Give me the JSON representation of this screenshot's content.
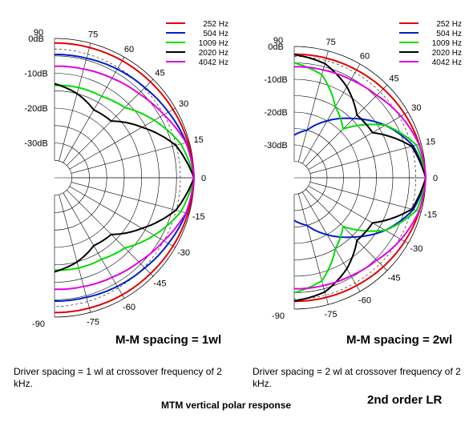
{
  "chart_data": [
    {
      "type": "polar",
      "subtitle": "M-M spacing = 1wl",
      "caption": "Driver spacing = 1 wl at crossover frequency of 2 kHz.",
      "angle_unit": "deg",
      "angle_ticks": [
        "90",
        "75",
        "60",
        "45",
        "30",
        "15",
        "0",
        "-15",
        "-30",
        "-45",
        "-60",
        "-75",
        "-90"
      ],
      "radial_ticks": [
        "0dB",
        "-10dB",
        "-20dB",
        "-30dB"
      ],
      "r_range": [
        -40,
        0
      ],
      "legend": [
        "252 Hz",
        "504 Hz",
        "1009 Hz",
        "2020 Hz",
        "4042 Hz"
      ],
      "series": [
        {
          "name": "252 Hz",
          "color": "#e00000",
          "angles": [
            0,
            15,
            30,
            45,
            60,
            75,
            90
          ],
          "values": [
            0,
            -0.4,
            -0.8,
            -1.1,
            -1.2,
            -1.3,
            -1.3
          ]
        },
        {
          "name": "504 Hz",
          "color": "#0020c8",
          "angles": [
            0,
            15,
            30,
            45,
            60,
            75,
            90
          ],
          "values": [
            0,
            -0.9,
            -2.3,
            -3.4,
            -4,
            -4.5,
            -4.6
          ]
        },
        {
          "name": "1009 Hz",
          "color": "#00dd00",
          "angles": [
            0,
            15,
            30,
            45,
            60,
            75,
            90
          ],
          "values": [
            0,
            -2.5,
            -7,
            -11.5,
            -13,
            -13.2,
            -13.5
          ]
        },
        {
          "name": "2020 Hz",
          "color": "#000000",
          "angles": [
            0,
            15,
            30,
            45,
            60,
            75,
            90
          ],
          "values": [
            0,
            -4,
            -11,
            -17,
            -17.5,
            -15,
            -13
          ]
        },
        {
          "name": "4042 Hz",
          "color": "#e000e0",
          "angles": [
            0,
            15,
            30,
            45,
            60,
            75,
            90
          ],
          "values": [
            0,
            -1,
            -3.8,
            -5.8,
            -7,
            -7.7,
            -8
          ]
        }
      ]
    },
    {
      "type": "polar",
      "subtitle": "M-M spacing = 2wl",
      "caption": "Driver spacing = 2 wl at crossover frequency of 2 kHz.",
      "angle_unit": "deg",
      "angle_ticks": [
        "90",
        "75",
        "60",
        "45",
        "30",
        "15",
        "0",
        "-15",
        "-30",
        "-45",
        "-60",
        "-75",
        "-90"
      ],
      "radial_ticks": [
        "0dB",
        "-10dB",
        "-20dB",
        "-30dB"
      ],
      "r_range": [
        -40,
        0
      ],
      "legend": [
        "252 Hz",
        "504 Hz",
        "1009 Hz",
        "2020 Hz",
        "4042 Hz"
      ],
      "series": [
        {
          "name": "252 Hz",
          "color": "#e00000",
          "angles": [
            0,
            15,
            30,
            45,
            60,
            75,
            90
          ],
          "values": [
            0,
            -0.6,
            -1.2,
            -1.7,
            -2.1,
            -2.3,
            -2.4
          ]
        },
        {
          "name": "504 Hz",
          "color": "#0020c8",
          "angles": [
            0,
            15,
            30,
            45,
            60,
            75,
            90
          ],
          "values": [
            0,
            -2.5,
            -8,
            -14.5,
            -20,
            -25,
            -27
          ]
        },
        {
          "name": "1009 Hz",
          "color": "#00dd00",
          "angles": [
            0,
            15,
            30,
            45,
            60,
            75,
            90
          ],
          "values": [
            0,
            -1.5,
            -8,
            -19,
            -15,
            -7.5,
            -5
          ]
        },
        {
          "name": "2020 Hz",
          "color": "#000000",
          "angles": [
            0,
            15,
            30,
            45,
            60,
            75,
            90
          ],
          "values": [
            0,
            -3,
            -12.5,
            -13,
            -8,
            -4,
            -2.5
          ]
        },
        {
          "name": "4042 Hz",
          "color": "#e000e0",
          "angles": [
            0,
            15,
            30,
            45,
            60,
            75,
            90
          ],
          "values": [
            0,
            -0.7,
            -2.5,
            -4.5,
            -5.5,
            -6,
            -6.2
          ]
        }
      ]
    }
  ],
  "footer": {
    "title": "MTM vertical polar response",
    "note": "2nd order LR"
  }
}
